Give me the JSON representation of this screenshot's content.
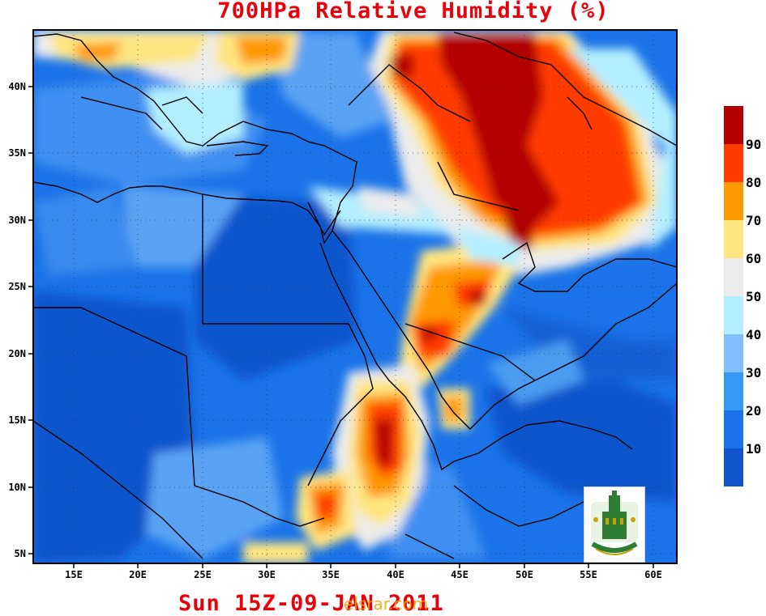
{
  "title": "700HPa Relative Humidity (%)",
  "footer": "Sun 15Z-09-JAN 2011",
  "watermark": "elsrar.com",
  "map": {
    "lon_ticks": [
      "15E",
      "20E",
      "25E",
      "30E",
      "35E",
      "40E",
      "45E",
      "50E",
      "55E",
      "60E"
    ],
    "lat_ticks": [
      "40N",
      "35N",
      "30N",
      "25N",
      "20N",
      "15N",
      "10N",
      "5N"
    ]
  },
  "colorbar": {
    "labels": [
      "90",
      "80",
      "70",
      "60",
      "50",
      "40",
      "30",
      "20",
      "10"
    ],
    "colors": [
      "#b30000",
      "#ff3b00",
      "#ff9900",
      "#ffe680",
      "#ebebeb",
      "#b3eeff",
      "#80bfff",
      "#3399f2",
      "#1a73e8",
      "#1055cc"
    ]
  },
  "colors": {
    "base": "#1a6fe0",
    "deep": "#1155cc",
    "light_blue": "#4b9cf0",
    "title_red": "#e8000b"
  },
  "icons": {
    "logo": "university-logo-icon"
  }
}
